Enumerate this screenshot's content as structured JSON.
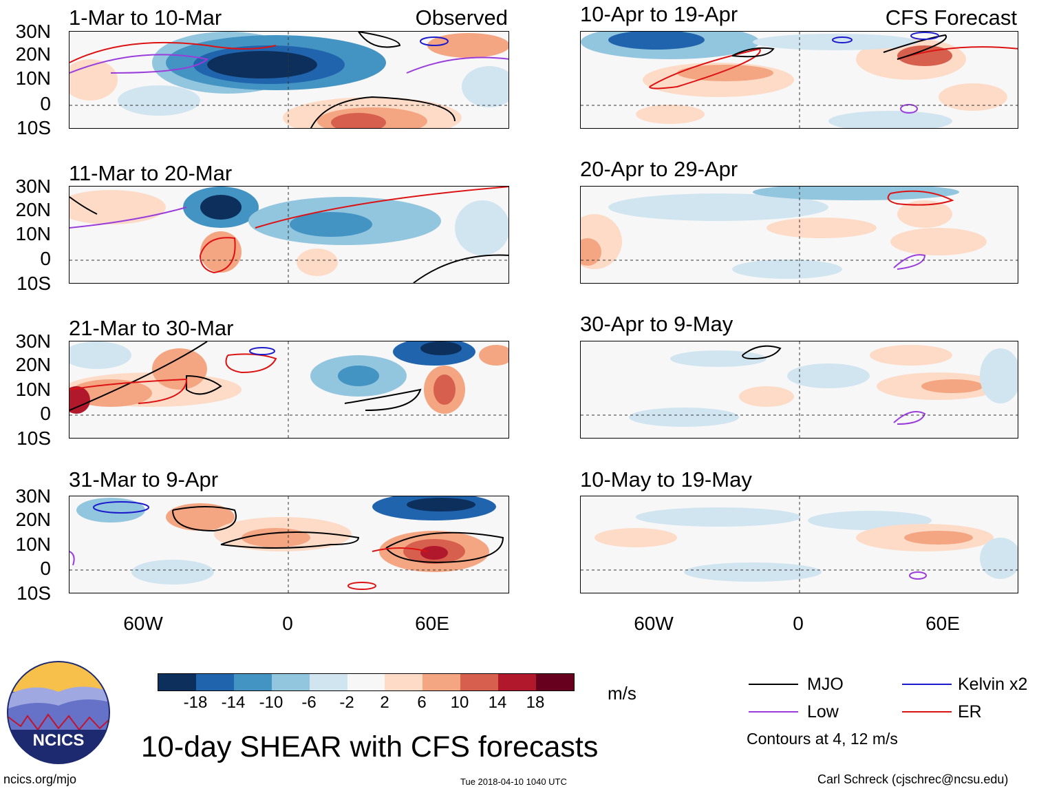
{
  "panels": [
    {
      "title": "1-Mar to 10-Mar",
      "tag": "Observed"
    },
    {
      "title": "11-Mar to 20-Mar",
      "tag": ""
    },
    {
      "title": "21-Mar to 30-Mar",
      "tag": ""
    },
    {
      "title": "31-Mar to 9-Apr",
      "tag": ""
    },
    {
      "title": "10-Apr to 19-Apr",
      "tag": "CFS Forecast"
    },
    {
      "title": "20-Apr to 29-Apr",
      "tag": ""
    },
    {
      "title": "30-Apr to 9-May",
      "tag": ""
    },
    {
      "title": "10-May to 19-May",
      "tag": ""
    }
  ],
  "lat_labels": [
    "30N",
    "20N",
    "10N",
    "0",
    "10S"
  ],
  "lon_labels": [
    "60W",
    "0",
    "60E"
  ],
  "colorbar": {
    "labels": [
      "-18",
      "-14",
      "-10",
      "-6",
      "-2",
      "2",
      "6",
      "10",
      "14",
      "18"
    ],
    "colors": [
      "#0d2f5c",
      "#2064ad",
      "#4393c3",
      "#92c5de",
      "#d1e5f0",
      "#f7f7f7",
      "#fddbc7",
      "#f4a582",
      "#d6604d",
      "#b2182b",
      "#67001f"
    ],
    "units": "m/s"
  },
  "legend": {
    "mjo": {
      "label": "MJO",
      "color": "#000000"
    },
    "kelvin": {
      "label": "Kelvin x2",
      "color": "#1a1acc"
    },
    "low": {
      "label": "Low",
      "color": "#9a3bdc"
    },
    "er": {
      "label": "ER",
      "color": "#dd1111"
    },
    "note": "Contours at 4, 12 m/s"
  },
  "main_title": "10-day SHEAR with CFS forecasts",
  "logo_text": "NCICS",
  "footer": {
    "url": "ncics.org/mjo",
    "timestamp": "Tue 2018-04-10 1040 UTC",
    "author": "Carl Schreck (cjschrec@ncsu.edu)"
  }
}
